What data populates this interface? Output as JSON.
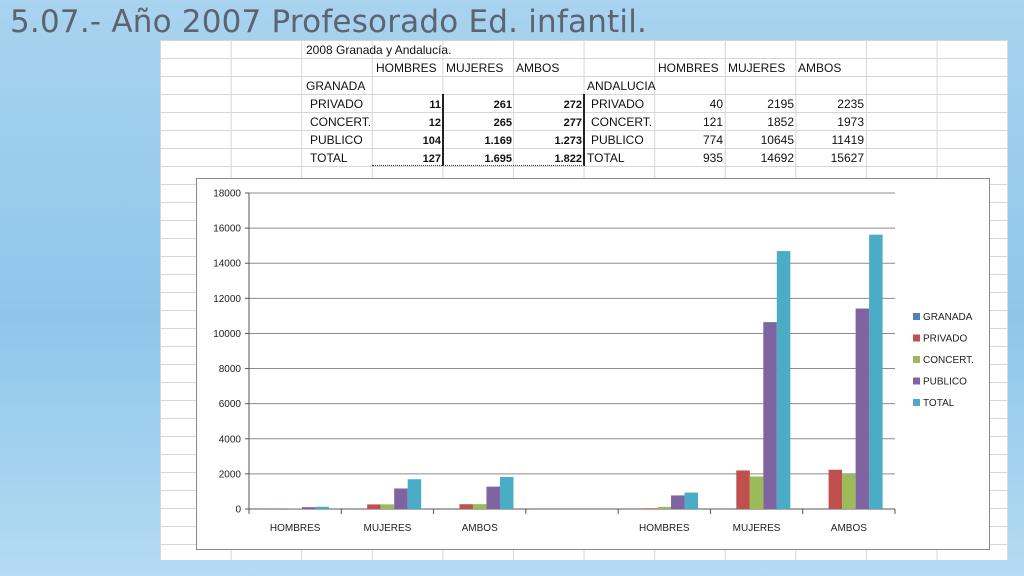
{
  "title": "5.07.- Año 2007 Profesorado Ed. infantil.",
  "table": {
    "caption": "2008   Granada y Andalucía.",
    "headers_left": [
      "HOMBRES",
      "MUJERES",
      "AMBOS"
    ],
    "headers_right": [
      "HOMBRES",
      "MUJERES",
      "AMBOS"
    ],
    "section_left": "GRANADA",
    "section_right": "ANDALUCIA",
    "rows_left": [
      {
        "label": "PRIVADO",
        "values": [
          "11",
          "261",
          "272"
        ]
      },
      {
        "label": "CONCERT.",
        "values": [
          "12",
          "265",
          "277"
        ]
      },
      {
        "label": "PUBLICO",
        "values": [
          "104",
          "1.169",
          "1.273"
        ]
      },
      {
        "label": "TOTAL",
        "values": [
          "127",
          "1.695",
          "1.822"
        ]
      }
    ],
    "rows_right": [
      {
        "label": "PRIVADO",
        "values": [
          "40",
          "2195",
          "2235"
        ]
      },
      {
        "label": "CONCERT.",
        "values": [
          "121",
          "1852",
          "1973"
        ]
      },
      {
        "label": "PUBLICO",
        "values": [
          "774",
          "10645",
          "11419"
        ]
      },
      {
        "label": "TOTAL",
        "values": [
          "935",
          "14692",
          "15627"
        ]
      }
    ]
  },
  "chart_data": {
    "type": "bar",
    "categories": [
      "HOMBRES",
      "MUJERES",
      "AMBOS",
      "",
      "HOMBRES",
      "MUJERES",
      "AMBOS"
    ],
    "series": [
      {
        "name": "GRANADA",
        "color": "#4f81bd",
        "values": [
          0,
          0,
          0,
          0,
          0,
          0,
          0
        ]
      },
      {
        "name": "PRIVADO",
        "color": "#c0504d",
        "values": [
          11,
          261,
          272,
          0,
          40,
          2195,
          2235
        ]
      },
      {
        "name": "CONCERT.",
        "color": "#9bbb59",
        "values": [
          12,
          265,
          277,
          0,
          121,
          1852,
          1973
        ]
      },
      {
        "name": "PUBLICO",
        "color": "#8064a2",
        "values": [
          104,
          1169,
          1273,
          0,
          774,
          10645,
          11419
        ]
      },
      {
        "name": "TOTAL",
        "color": "#4bacc6",
        "values": [
          127,
          1695,
          1822,
          0,
          935,
          14692,
          15627
        ]
      }
    ],
    "ylim": [
      0,
      18000
    ],
    "yticks": [
      0,
      2000,
      4000,
      6000,
      8000,
      10000,
      12000,
      14000,
      16000,
      18000
    ],
    "grid": true,
    "legend": "right"
  }
}
